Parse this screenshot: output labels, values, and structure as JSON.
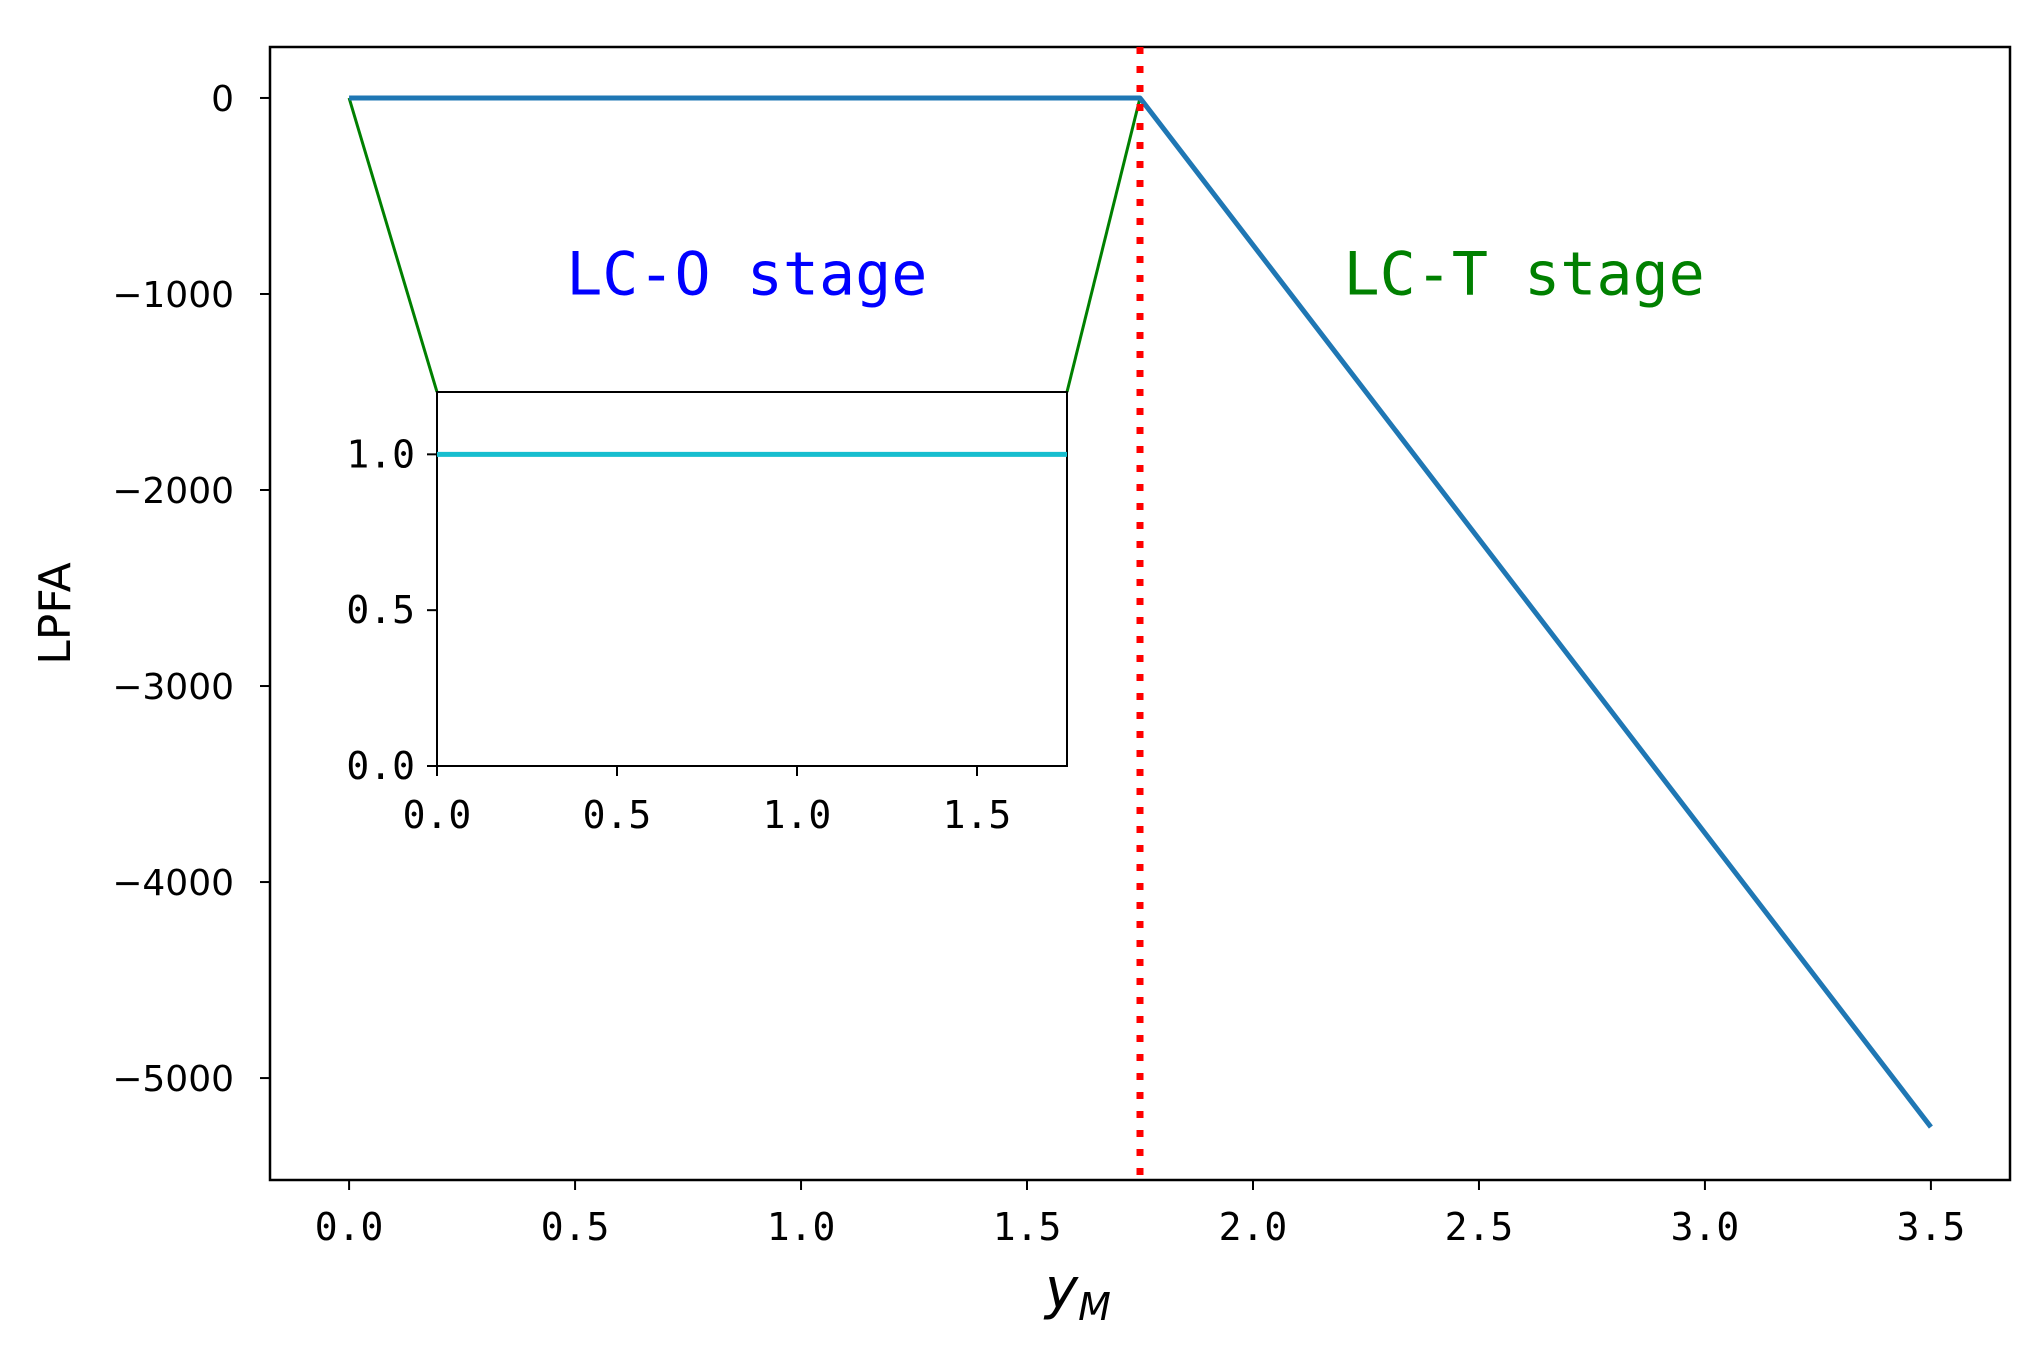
{
  "chart_data": [
    {
      "type": "line",
      "xlabel": "y",
      "xlabel_sub": "M",
      "ylabel": "LPFA",
      "xlim": [
        -0.175,
        3.675
      ],
      "ylim": [
        -5520,
        260
      ],
      "xticks": [
        0.0,
        0.5,
        1.0,
        1.5,
        2.0,
        2.5,
        3.0,
        3.5
      ],
      "xtick_labels": [
        "0.0",
        "0.5",
        "1.0",
        "1.5",
        "2.0",
        "2.5",
        "3.0",
        "3.5"
      ],
      "yticks": [
        0,
        -1000,
        -2000,
        -3000,
        -4000,
        -5000
      ],
      "ytick_labels": [
        "0",
        "−1000",
        "−2000",
        "−3000",
        "−4000",
        "−5000"
      ],
      "series": [
        {
          "color": "#1f77b4",
          "x": [
            0.0,
            1.75,
            3.5
          ],
          "y": [
            0,
            0,
            -5250
          ]
        }
      ],
      "vline": {
        "x": 1.75,
        "color": "#ff0000",
        "style": "dotted"
      },
      "annotations": [
        {
          "text": "LC-O stage",
          "x": 0.88,
          "y": -900,
          "color": "#0000ff"
        },
        {
          "text": "LC-T stage",
          "x": 2.6,
          "y": -900,
          "color": "#008000"
        }
      ],
      "grid": false,
      "legend": "none"
    },
    {
      "type": "line",
      "role": "inset",
      "xlim": [
        0.0,
        1.75
      ],
      "ylim": [
        0.0,
        1.2
      ],
      "xticks": [
        0.0,
        0.5,
        1.0,
        1.5
      ],
      "xtick_labels": [
        "0.0",
        "0.5",
        "1.0",
        "1.5"
      ],
      "yticks": [
        0.0,
        0.5,
        1.0
      ],
      "ytick_labels": [
        "0.0",
        "0.5",
        "1.0"
      ],
      "series": [
        {
          "color": "#17becf",
          "x": [
            0.0,
            1.75
          ],
          "y": [
            1.0,
            1.0
          ]
        }
      ],
      "zoom_connector_color": "#008000"
    }
  ]
}
